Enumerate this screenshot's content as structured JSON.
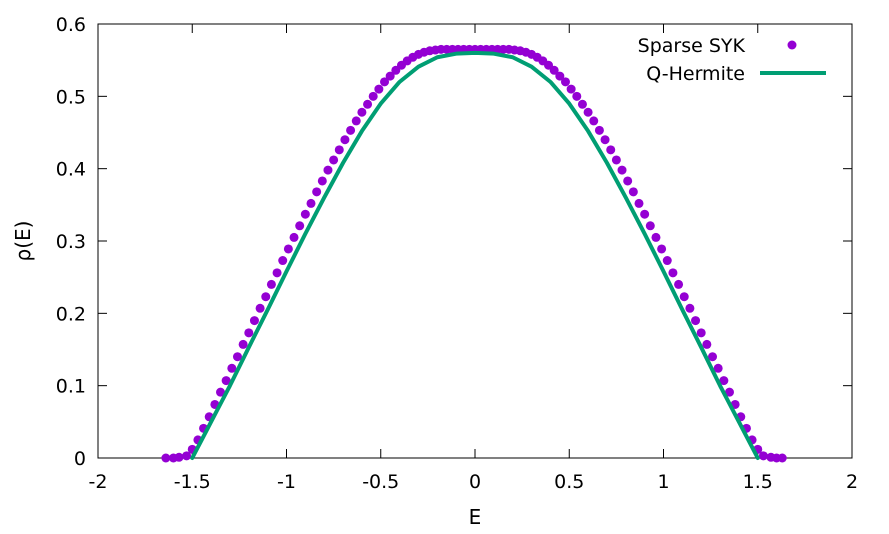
{
  "chart_data": {
    "type": "scatter",
    "xlabel": "E",
    "ylabel": "ρ(E)",
    "xlim": [
      -2,
      2
    ],
    "ylim": [
      0,
      0.6
    ],
    "xticks": [
      -2,
      -1.5,
      -1,
      -0.5,
      0,
      0.5,
      1,
      1.5,
      2
    ],
    "xtick_labels": [
      "-2",
      "-1.5",
      "-1",
      "-0.5",
      "0",
      "0.5",
      "1",
      "1.5",
      "2"
    ],
    "yticks": [
      0,
      0.1,
      0.2,
      0.3,
      0.4,
      0.5,
      0.6
    ],
    "ytick_labels": [
      "0",
      "0.1",
      "0.2",
      "0.3",
      "0.4",
      "0.5",
      "0.6"
    ],
    "grid": false,
    "legend_position": "top-right",
    "series": [
      {
        "name": "Sparse SYK",
        "style": "points",
        "color": "#9400d3",
        "points": [
          [
            -1.64,
            0.0
          ],
          [
            -1.6,
            0.0
          ],
          [
            -1.57,
            0.001
          ],
          [
            -1.53,
            0.003
          ],
          [
            -1.5,
            0.012
          ],
          [
            -1.47,
            0.025
          ],
          [
            -1.44,
            0.041
          ],
          [
            -1.41,
            0.057
          ],
          [
            -1.38,
            0.074
          ],
          [
            -1.35,
            0.091
          ],
          [
            -1.32,
            0.107
          ],
          [
            -1.29,
            0.124
          ],
          [
            -1.26,
            0.14
          ],
          [
            -1.23,
            0.157
          ],
          [
            -1.2,
            0.173
          ],
          [
            -1.17,
            0.19
          ],
          [
            -1.14,
            0.207
          ],
          [
            -1.11,
            0.223
          ],
          [
            -1.08,
            0.24
          ],
          [
            -1.05,
            0.256
          ],
          [
            -1.02,
            0.273
          ],
          [
            -0.99,
            0.289
          ],
          [
            -0.96,
            0.305
          ],
          [
            -0.93,
            0.321
          ],
          [
            -0.9,
            0.337
          ],
          [
            -0.87,
            0.352
          ],
          [
            -0.84,
            0.368
          ],
          [
            -0.81,
            0.383
          ],
          [
            -0.78,
            0.398
          ],
          [
            -0.75,
            0.412
          ],
          [
            -0.72,
            0.426
          ],
          [
            -0.69,
            0.44
          ],
          [
            -0.66,
            0.453
          ],
          [
            -0.63,
            0.466
          ],
          [
            -0.6,
            0.478
          ],
          [
            -0.57,
            0.489
          ],
          [
            -0.54,
            0.5
          ],
          [
            -0.51,
            0.51
          ],
          [
            -0.48,
            0.52
          ],
          [
            -0.45,
            0.528
          ],
          [
            -0.42,
            0.536
          ],
          [
            -0.39,
            0.543
          ],
          [
            -0.36,
            0.549
          ],
          [
            -0.33,
            0.554
          ],
          [
            -0.3,
            0.558
          ],
          [
            -0.27,
            0.561
          ],
          [
            -0.24,
            0.563
          ],
          [
            -0.21,
            0.564
          ],
          [
            -0.18,
            0.565
          ],
          [
            -0.15,
            0.565
          ],
          [
            -0.12,
            0.565
          ],
          [
            -0.09,
            0.565
          ],
          [
            -0.06,
            0.565
          ],
          [
            -0.03,
            0.565
          ],
          [
            0.0,
            0.565
          ],
          [
            0.03,
            0.565
          ],
          [
            0.06,
            0.565
          ],
          [
            0.09,
            0.565
          ],
          [
            0.12,
            0.565
          ],
          [
            0.15,
            0.565
          ],
          [
            0.18,
            0.565
          ],
          [
            0.21,
            0.564
          ],
          [
            0.24,
            0.563
          ],
          [
            0.27,
            0.561
          ],
          [
            0.3,
            0.558
          ],
          [
            0.33,
            0.554
          ],
          [
            0.36,
            0.549
          ],
          [
            0.39,
            0.543
          ],
          [
            0.42,
            0.536
          ],
          [
            0.45,
            0.528
          ],
          [
            0.48,
            0.52
          ],
          [
            0.51,
            0.51
          ],
          [
            0.54,
            0.5
          ],
          [
            0.57,
            0.489
          ],
          [
            0.6,
            0.478
          ],
          [
            0.63,
            0.466
          ],
          [
            0.66,
            0.453
          ],
          [
            0.69,
            0.44
          ],
          [
            0.72,
            0.426
          ],
          [
            0.75,
            0.412
          ],
          [
            0.78,
            0.398
          ],
          [
            0.81,
            0.383
          ],
          [
            0.84,
            0.368
          ],
          [
            0.87,
            0.352
          ],
          [
            0.9,
            0.337
          ],
          [
            0.93,
            0.321
          ],
          [
            0.96,
            0.305
          ],
          [
            0.99,
            0.289
          ],
          [
            1.02,
            0.273
          ],
          [
            1.05,
            0.256
          ],
          [
            1.08,
            0.24
          ],
          [
            1.11,
            0.223
          ],
          [
            1.14,
            0.207
          ],
          [
            1.17,
            0.19
          ],
          [
            1.2,
            0.173
          ],
          [
            1.23,
            0.157
          ],
          [
            1.26,
            0.14
          ],
          [
            1.29,
            0.124
          ],
          [
            1.32,
            0.107
          ],
          [
            1.35,
            0.091
          ],
          [
            1.38,
            0.074
          ],
          [
            1.41,
            0.057
          ],
          [
            1.44,
            0.041
          ],
          [
            1.47,
            0.025
          ],
          [
            1.5,
            0.012
          ],
          [
            1.53,
            0.003
          ],
          [
            1.57,
            0.001
          ],
          [
            1.6,
            0.0
          ],
          [
            1.63,
            0.0
          ]
        ]
      },
      {
        "name": "Q-Hermite",
        "style": "line",
        "color": "#009e73",
        "points": [
          [
            -1.5,
            0.0
          ],
          [
            -1.45,
            0.025
          ],
          [
            -1.4,
            0.05
          ],
          [
            -1.35,
            0.075
          ],
          [
            -1.3,
            0.1
          ],
          [
            -1.2,
            0.153
          ],
          [
            -1.1,
            0.205
          ],
          [
            -1.0,
            0.258
          ],
          [
            -0.9,
            0.31
          ],
          [
            -0.8,
            0.36
          ],
          [
            -0.7,
            0.408
          ],
          [
            -0.6,
            0.452
          ],
          [
            -0.5,
            0.49
          ],
          [
            -0.4,
            0.52
          ],
          [
            -0.3,
            0.541
          ],
          [
            -0.2,
            0.554
          ],
          [
            -0.1,
            0.559
          ],
          [
            0.0,
            0.56
          ],
          [
            0.1,
            0.559
          ],
          [
            0.2,
            0.554
          ],
          [
            0.3,
            0.541
          ],
          [
            0.4,
            0.52
          ],
          [
            0.5,
            0.49
          ],
          [
            0.6,
            0.452
          ],
          [
            0.7,
            0.408
          ],
          [
            0.8,
            0.36
          ],
          [
            0.9,
            0.31
          ],
          [
            1.0,
            0.258
          ],
          [
            1.1,
            0.205
          ],
          [
            1.2,
            0.153
          ],
          [
            1.3,
            0.1
          ],
          [
            1.35,
            0.075
          ],
          [
            1.4,
            0.05
          ],
          [
            1.45,
            0.025
          ],
          [
            1.5,
            0.0
          ]
        ]
      }
    ]
  }
}
